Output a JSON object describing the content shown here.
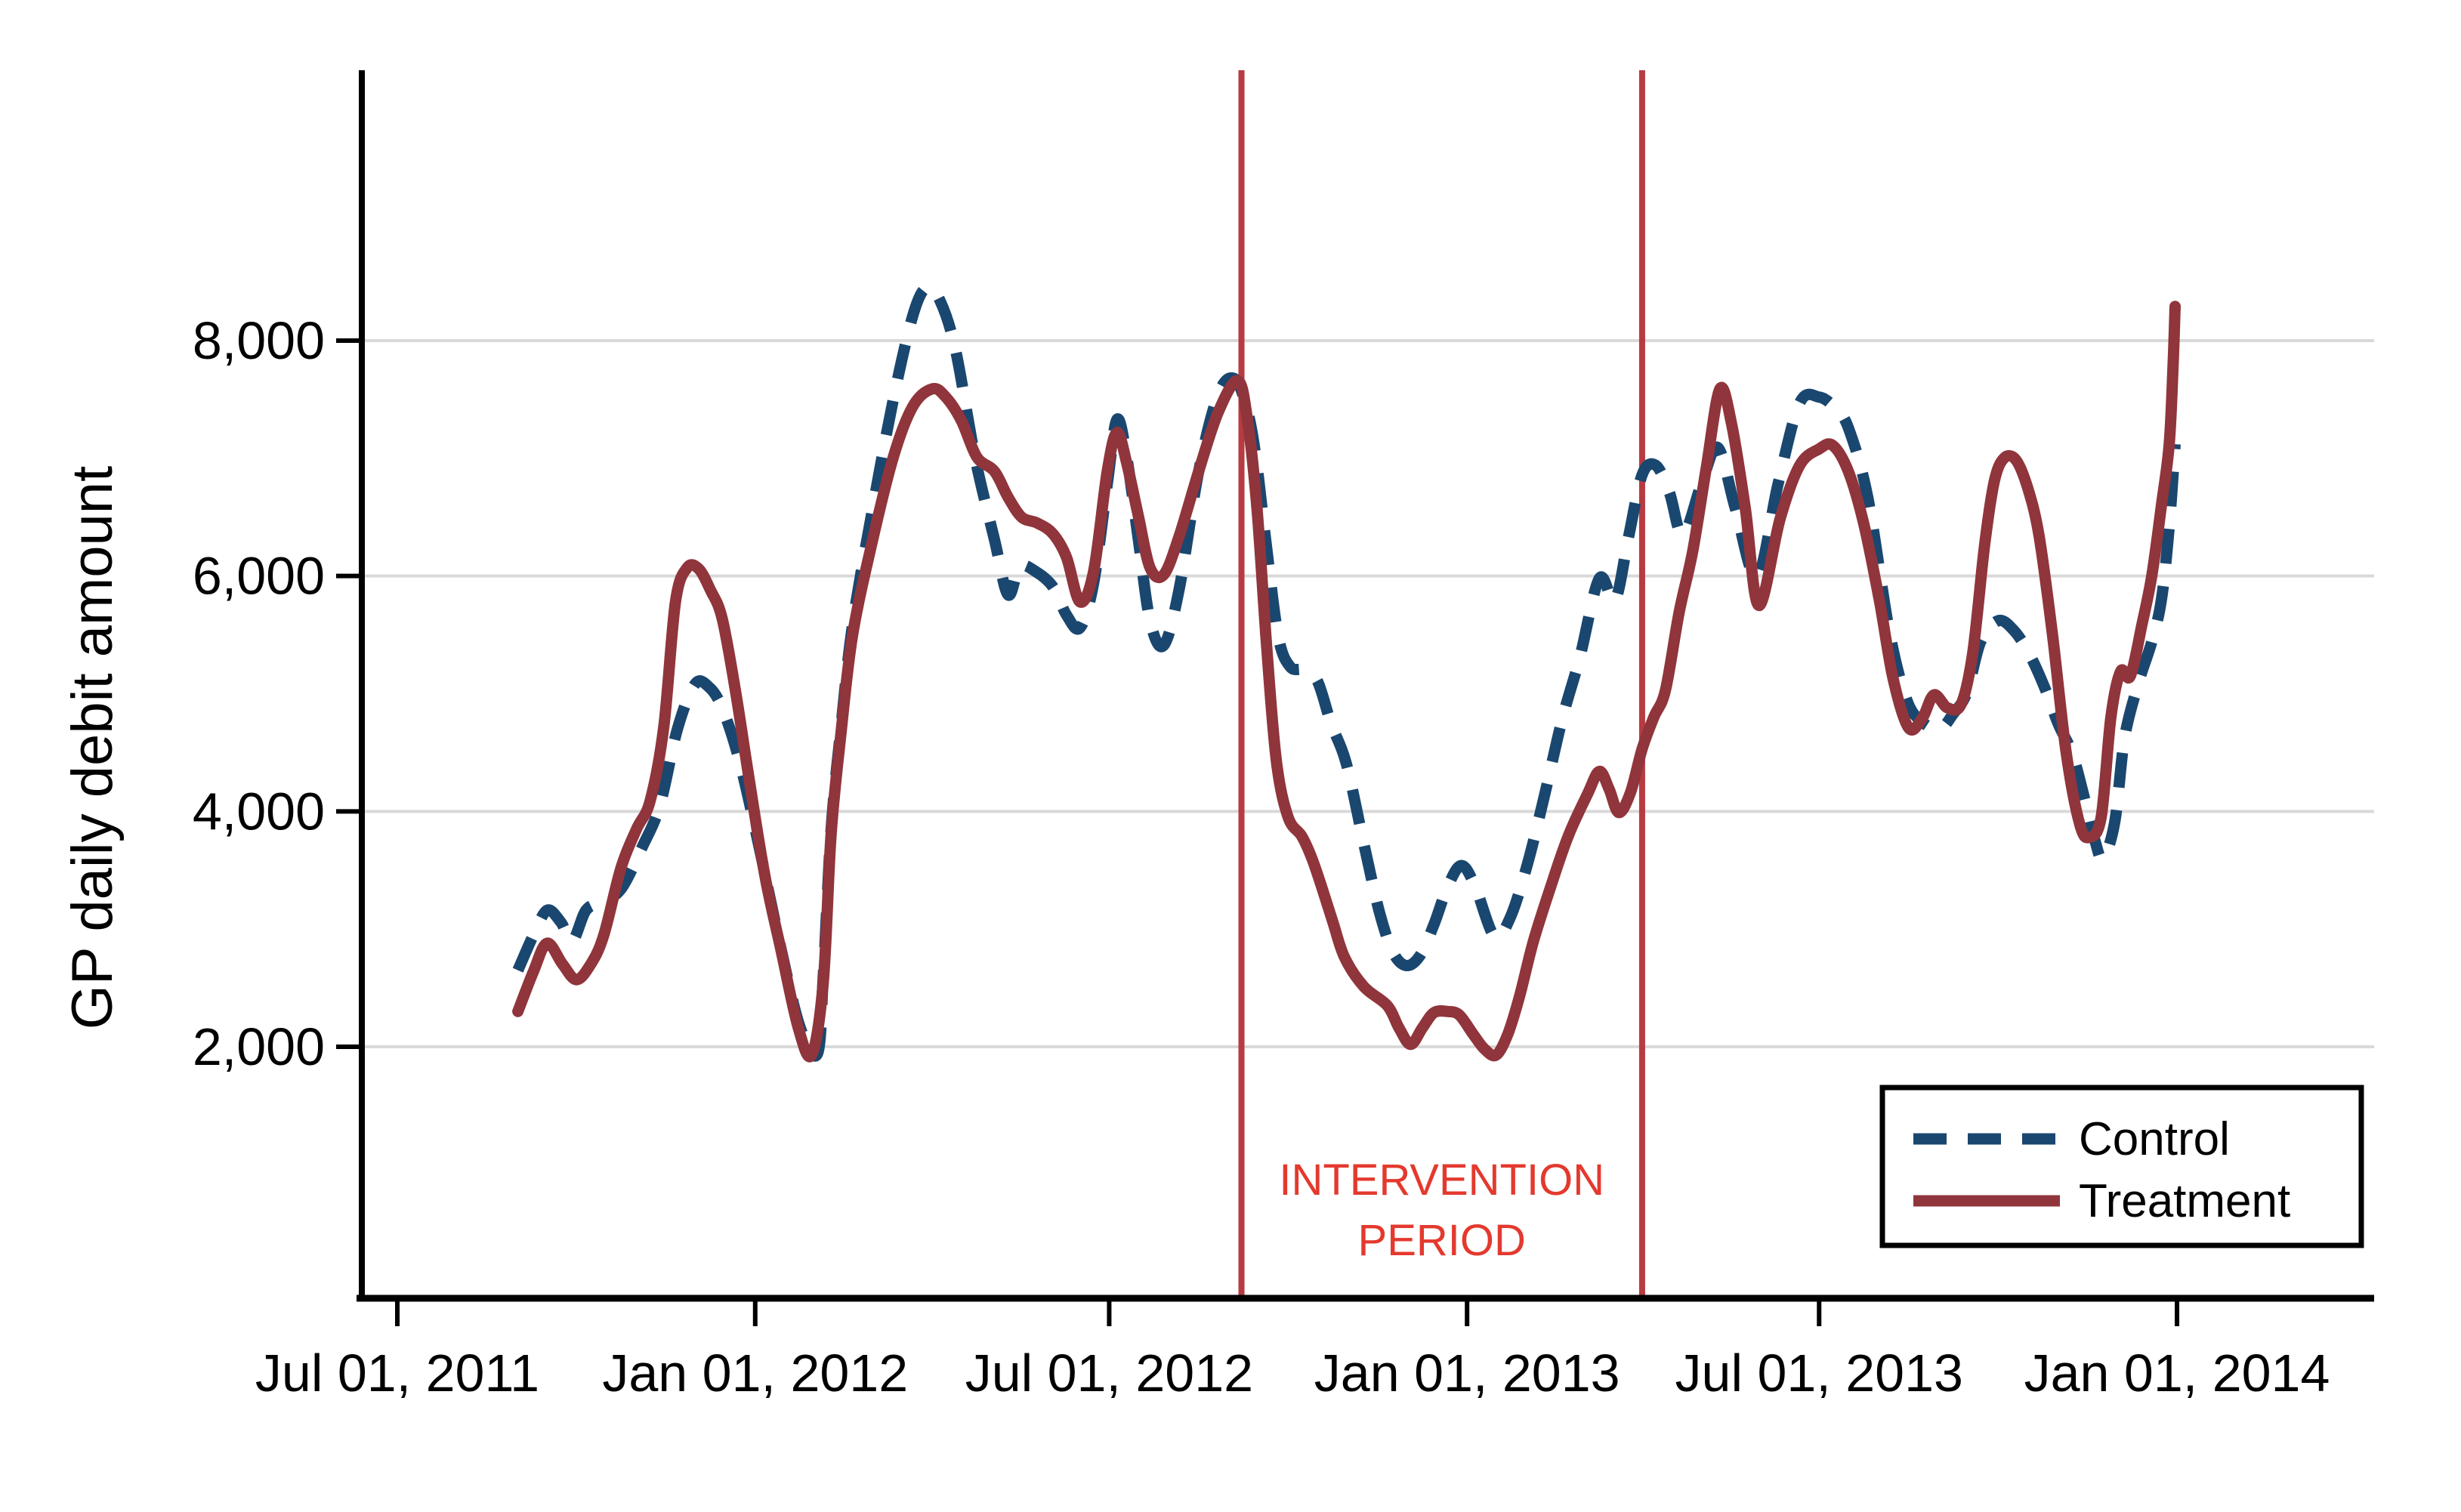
{
  "page": {
    "background": "#ffffff"
  },
  "chart_data": {
    "type": "line",
    "title": "",
    "xlabel": "",
    "ylabel": "GP daily debit amount",
    "x_range": [
      "2011-06-13",
      "2014-04-12"
    ],
    "ylim": [
      -120,
      10300
    ],
    "grid": "horizontal-only",
    "yticks": [
      {
        "value": 2000,
        "label": "2,000"
      },
      {
        "value": 4000,
        "label": "4,000"
      },
      {
        "value": 6000,
        "label": "6,000"
      },
      {
        "value": 8000,
        "label": "8,000"
      }
    ],
    "xticks": [
      {
        "date": "2011-07-01",
        "label": "Jul 01, 2011"
      },
      {
        "date": "2012-01-01",
        "label": "Jan 01, 2012"
      },
      {
        "date": "2012-07-01",
        "label": "Jul 01, 2012"
      },
      {
        "date": "2013-01-01",
        "label": "Jan 01, 2013"
      },
      {
        "date": "2013-07-01",
        "label": "Jul 01, 2013"
      },
      {
        "date": "2014-01-01",
        "label": "Jan 01, 2014"
      }
    ],
    "colors": {
      "control": "#1a476f",
      "treatment": "#90353b",
      "intervention_line": "#b73b40",
      "intervention_text": "#e4392e",
      "gridline": "#d9d9d9",
      "axis": "#000000",
      "legend_border": "#000000"
    },
    "intervention": {
      "label_lines": [
        "INTERVENTION",
        "PERIOD"
      ],
      "start_date": "2012-09-07",
      "end_date": "2013-04-01"
    },
    "legend": {
      "position": "bottom-right",
      "entries": [
        {
          "name": "Control",
          "style": "dashed"
        },
        {
          "name": "Treatment",
          "style": "solid"
        }
      ]
    },
    "series": [
      {
        "name": "Control",
        "color": "#1a476f",
        "dash": true,
        "points": [
          [
            "2011-09-01",
            2650
          ],
          [
            "2011-09-09",
            2950
          ],
          [
            "2011-09-16",
            3160
          ],
          [
            "2011-09-23",
            3060
          ],
          [
            "2011-09-29",
            2900
          ],
          [
            "2011-10-06",
            3160
          ],
          [
            "2011-10-14",
            3230
          ],
          [
            "2011-10-24",
            3340
          ],
          [
            "2011-11-04",
            3700
          ],
          [
            "2011-11-13",
            4050
          ],
          [
            "2011-11-22",
            4700
          ],
          [
            "2011-12-01",
            5080
          ],
          [
            "2011-12-08",
            5060
          ],
          [
            "2011-12-15",
            4880
          ],
          [
            "2011-12-24",
            4420
          ],
          [
            "2012-01-03",
            3700
          ],
          [
            "2012-01-14",
            2850
          ],
          [
            "2012-01-24",
            2170
          ],
          [
            "2012-02-02",
            1940
          ],
          [
            "2012-02-05",
            2600
          ],
          [
            "2012-02-09",
            3840
          ],
          [
            "2012-02-14",
            4700
          ],
          [
            "2012-02-20",
            5580
          ],
          [
            "2012-03-01",
            6540
          ],
          [
            "2012-03-12",
            7500
          ],
          [
            "2012-03-22",
            8210
          ],
          [
            "2012-03-29",
            8450
          ],
          [
            "2012-04-05",
            8340
          ],
          [
            "2012-04-13",
            7920
          ],
          [
            "2012-04-23",
            7010
          ],
          [
            "2012-05-03",
            6310
          ],
          [
            "2012-05-10",
            5840
          ],
          [
            "2012-05-16",
            6080
          ],
          [
            "2012-05-24",
            6040
          ],
          [
            "2012-06-02",
            5910
          ],
          [
            "2012-06-09",
            5670
          ],
          [
            "2012-06-16",
            5560
          ],
          [
            "2012-06-23",
            5940
          ],
          [
            "2012-06-30",
            6780
          ],
          [
            "2012-07-05",
            7330
          ],
          [
            "2012-07-10",
            7010
          ],
          [
            "2012-07-16",
            6310
          ],
          [
            "2012-07-22",
            5620
          ],
          [
            "2012-07-29",
            5410
          ],
          [
            "2012-08-06",
            5890
          ],
          [
            "2012-08-16",
            6890
          ],
          [
            "2012-08-26",
            7540
          ],
          [
            "2012-09-03",
            7680
          ],
          [
            "2012-09-09",
            7470
          ],
          [
            "2012-09-14",
            7060
          ],
          [
            "2012-09-20",
            6230
          ],
          [
            "2012-09-26",
            5480
          ],
          [
            "2012-10-02",
            5230
          ],
          [
            "2012-10-09",
            5200
          ],
          [
            "2012-10-16",
            5110
          ],
          [
            "2012-10-23",
            4750
          ],
          [
            "2012-10-31",
            4400
          ],
          [
            "2012-11-09",
            3720
          ],
          [
            "2012-11-17",
            3140
          ],
          [
            "2012-11-24",
            2800
          ],
          [
            "2012-12-01",
            2690
          ],
          [
            "2012-12-08",
            2780
          ],
          [
            "2012-12-15",
            3040
          ],
          [
            "2012-12-22",
            3360
          ],
          [
            "2012-12-29",
            3540
          ],
          [
            "2013-01-05",
            3370
          ],
          [
            "2013-01-15",
            2940
          ],
          [
            "2013-01-23",
            3090
          ],
          [
            "2013-02-01",
            3550
          ],
          [
            "2013-02-10",
            4150
          ],
          [
            "2013-02-19",
            4790
          ],
          [
            "2013-02-28",
            5310
          ],
          [
            "2013-03-10",
            5980
          ],
          [
            "2013-03-18",
            5790
          ],
          [
            "2013-03-25",
            6330
          ],
          [
            "2013-04-01",
            6860
          ],
          [
            "2013-04-08",
            6940
          ],
          [
            "2013-04-15",
            6710
          ],
          [
            "2013-04-22",
            6350
          ],
          [
            "2013-05-02",
            6810
          ],
          [
            "2013-05-10",
            7090
          ],
          [
            "2013-05-19",
            6570
          ],
          [
            "2013-05-30",
            5990
          ],
          [
            "2013-06-10",
            6790
          ],
          [
            "2013-06-21",
            7470
          ],
          [
            "2013-07-01",
            7520
          ],
          [
            "2013-07-09",
            7430
          ],
          [
            "2013-07-16",
            7260
          ],
          [
            "2013-07-26",
            6670
          ],
          [
            "2013-08-06",
            5540
          ],
          [
            "2013-08-15",
            4950
          ],
          [
            "2013-08-23",
            4760
          ],
          [
            "2013-09-01",
            4700
          ],
          [
            "2013-09-08",
            4830
          ],
          [
            "2013-09-15",
            5010
          ],
          [
            "2013-09-22",
            5440
          ],
          [
            "2013-10-01",
            5620
          ],
          [
            "2013-10-09",
            5540
          ],
          [
            "2013-10-17",
            5340
          ],
          [
            "2013-10-25",
            5050
          ],
          [
            "2013-11-01",
            4740
          ],
          [
            "2013-11-08",
            4500
          ],
          [
            "2013-11-14",
            4140
          ],
          [
            "2013-11-20",
            3740
          ],
          [
            "2013-11-24",
            3600
          ],
          [
            "2013-11-30",
            3910
          ],
          [
            "2013-12-05",
            4620
          ],
          [
            "2013-12-12",
            5080
          ],
          [
            "2013-12-19",
            5440
          ],
          [
            "2013-12-24",
            5800
          ],
          [
            "2013-12-28",
            6420
          ],
          [
            "2013-12-31",
            7120
          ]
        ]
      },
      {
        "name": "Treatment",
        "color": "#90353b",
        "dash": false,
        "points": [
          [
            "2011-09-01",
            2300
          ],
          [
            "2011-09-09",
            2640
          ],
          [
            "2011-09-16",
            2880
          ],
          [
            "2011-09-24",
            2700
          ],
          [
            "2011-10-01",
            2570
          ],
          [
            "2011-10-08",
            2690
          ],
          [
            "2011-10-15",
            2940
          ],
          [
            "2011-10-24",
            3520
          ],
          [
            "2011-11-01",
            3850
          ],
          [
            "2011-11-08",
            4090
          ],
          [
            "2011-11-15",
            4720
          ],
          [
            "2011-11-21",
            5780
          ],
          [
            "2011-11-27",
            6070
          ],
          [
            "2011-12-03",
            6060
          ],
          [
            "2011-12-09",
            5880
          ],
          [
            "2011-12-15",
            5640
          ],
          [
            "2011-12-22",
            5010
          ],
          [
            "2011-12-29",
            4260
          ],
          [
            "2012-01-06",
            3450
          ],
          [
            "2012-01-14",
            2840
          ],
          [
            "2012-01-23",
            2170
          ],
          [
            "2012-01-30",
            1930
          ],
          [
            "2012-02-05",
            2550
          ],
          [
            "2012-02-09",
            3800
          ],
          [
            "2012-02-14",
            4650
          ],
          [
            "2012-02-20",
            5490
          ],
          [
            "2012-03-01",
            6280
          ],
          [
            "2012-03-12",
            7010
          ],
          [
            "2012-03-22",
            7440
          ],
          [
            "2012-04-01",
            7590
          ],
          [
            "2012-04-08",
            7520
          ],
          [
            "2012-04-16",
            7320
          ],
          [
            "2012-04-24",
            7010
          ],
          [
            "2012-05-03",
            6890
          ],
          [
            "2012-05-10",
            6670
          ],
          [
            "2012-05-17",
            6500
          ],
          [
            "2012-05-25",
            6450
          ],
          [
            "2012-06-02",
            6360
          ],
          [
            "2012-06-09",
            6160
          ],
          [
            "2012-06-16",
            5780
          ],
          [
            "2012-06-23",
            6040
          ],
          [
            "2012-06-30",
            6890
          ],
          [
            "2012-07-05",
            7220
          ],
          [
            "2012-07-10",
            6960
          ],
          [
            "2012-07-16",
            6510
          ],
          [
            "2012-07-22",
            6070
          ],
          [
            "2012-07-29",
            6010
          ],
          [
            "2012-08-06",
            6340
          ],
          [
            "2012-08-16",
            6890
          ],
          [
            "2012-08-26",
            7390
          ],
          [
            "2012-09-05",
            7660
          ],
          [
            "2012-09-10",
            7340
          ],
          [
            "2012-09-15",
            6570
          ],
          [
            "2012-09-20",
            5390
          ],
          [
            "2012-09-25",
            4420
          ],
          [
            "2012-10-01",
            3950
          ],
          [
            "2012-10-08",
            3790
          ],
          [
            "2012-10-13",
            3610
          ],
          [
            "2012-10-18",
            3370
          ],
          [
            "2012-10-24",
            3060
          ],
          [
            "2012-10-30",
            2760
          ],
          [
            "2012-11-09",
            2510
          ],
          [
            "2012-11-21",
            2350
          ],
          [
            "2012-11-27",
            2160
          ],
          [
            "2012-12-03",
            2020
          ],
          [
            "2012-12-09",
            2160
          ],
          [
            "2012-12-15",
            2290
          ],
          [
            "2012-12-22",
            2300
          ],
          [
            "2012-12-28",
            2270
          ],
          [
            "2013-01-04",
            2110
          ],
          [
            "2013-01-10",
            1980
          ],
          [
            "2013-01-16",
            1930
          ],
          [
            "2013-01-22",
            2110
          ],
          [
            "2013-01-28",
            2430
          ],
          [
            "2013-02-04",
            2890
          ],
          [
            "2013-02-13",
            3360
          ],
          [
            "2013-02-22",
            3790
          ],
          [
            "2013-03-04",
            4150
          ],
          [
            "2013-03-10",
            4340
          ],
          [
            "2013-03-15",
            4190
          ],
          [
            "2013-03-20",
            3990
          ],
          [
            "2013-03-26",
            4160
          ],
          [
            "2013-04-01",
            4530
          ],
          [
            "2013-04-07",
            4800
          ],
          [
            "2013-04-13",
            5030
          ],
          [
            "2013-04-20",
            5690
          ],
          [
            "2013-04-27",
            6210
          ],
          [
            "2013-05-04",
            6920
          ],
          [
            "2013-05-11",
            7590
          ],
          [
            "2013-05-17",
            7290
          ],
          [
            "2013-05-24",
            6580
          ],
          [
            "2013-05-31",
            5750
          ],
          [
            "2013-06-11",
            6490
          ],
          [
            "2013-06-21",
            6940
          ],
          [
            "2013-07-01",
            7080
          ],
          [
            "2013-07-08",
            7110
          ],
          [
            "2013-07-16",
            6890
          ],
          [
            "2013-07-24",
            6440
          ],
          [
            "2013-08-01",
            5790
          ],
          [
            "2013-08-08",
            5130
          ],
          [
            "2013-08-16",
            4710
          ],
          [
            "2013-08-23",
            4790
          ],
          [
            "2013-08-29",
            4990
          ],
          [
            "2013-09-05",
            4880
          ],
          [
            "2013-09-12",
            4910
          ],
          [
            "2013-09-18",
            5350
          ],
          [
            "2013-09-24",
            6250
          ],
          [
            "2013-09-29",
            6800
          ],
          [
            "2013-10-04",
            7000
          ],
          [
            "2013-10-10",
            6990
          ],
          [
            "2013-10-16",
            6760
          ],
          [
            "2013-10-22",
            6350
          ],
          [
            "2013-10-29",
            5500
          ],
          [
            "2013-11-05",
            4500
          ],
          [
            "2013-11-12",
            3890
          ],
          [
            "2013-11-17",
            3780
          ],
          [
            "2013-11-23",
            3950
          ],
          [
            "2013-11-28",
            4800
          ],
          [
            "2013-12-03",
            5190
          ],
          [
            "2013-12-08",
            5150
          ],
          [
            "2013-12-14",
            5590
          ],
          [
            "2013-12-19",
            6000
          ],
          [
            "2013-12-24",
            6600
          ],
          [
            "2013-12-28",
            7120
          ],
          [
            "2013-12-30",
            7800
          ],
          [
            "2013-12-31",
            8290
          ]
        ]
      }
    ]
  }
}
